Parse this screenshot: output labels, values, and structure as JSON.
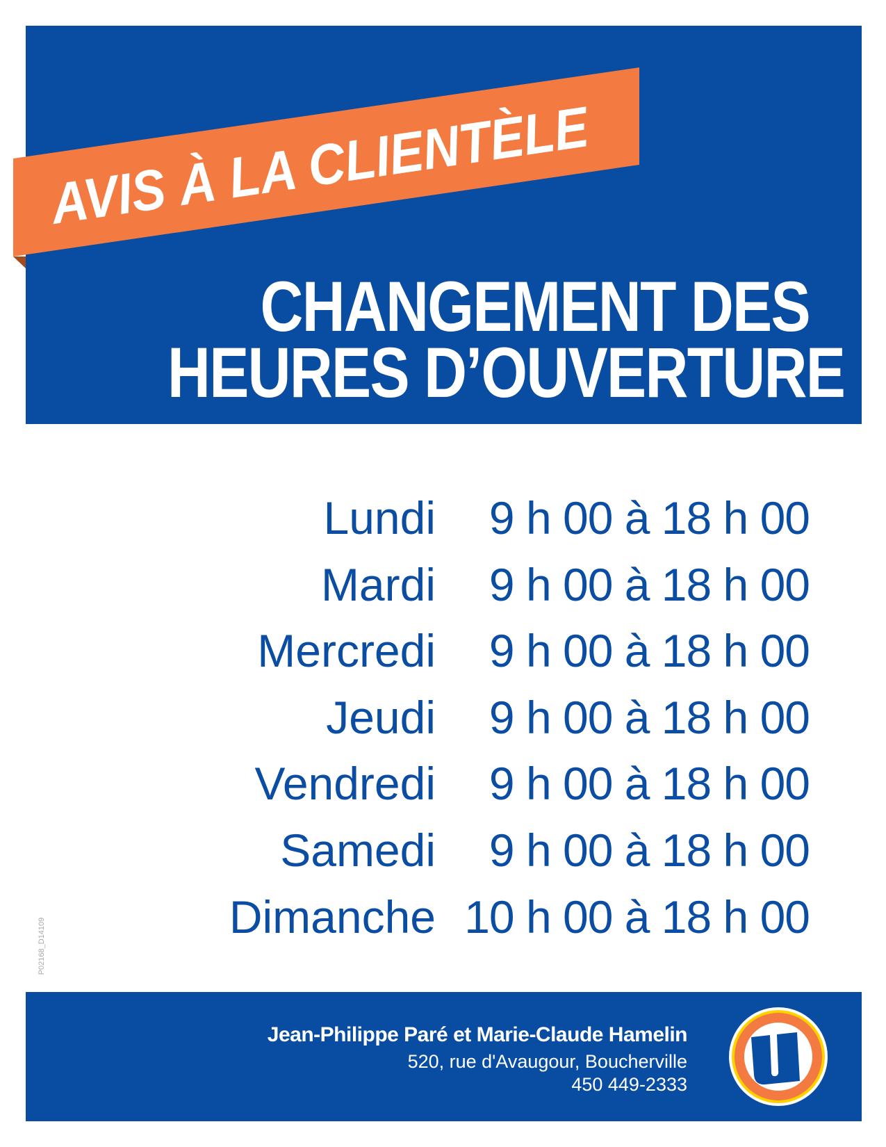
{
  "banner": {
    "ribbon_text": "AVIS À LA CLIENTÈLE"
  },
  "heading": {
    "line1": "CHANGEMENT DES",
    "line2": "HEURES D’OUVERTURE"
  },
  "schedule": [
    {
      "day": "Lundi",
      "hours": "9 h 00 à 18 h 00"
    },
    {
      "day": "Mardi",
      "hours": "9 h 00 à 18 h 00"
    },
    {
      "day": "Mercredi",
      "hours": "9 h 00 à 18 h 00"
    },
    {
      "day": "Jeudi",
      "hours": "9 h 00 à 18 h 00"
    },
    {
      "day": "Vendredi",
      "hours": "9 h 00 à 18 h 00"
    },
    {
      "day": "Samedi",
      "hours": "9 h 00 à 18 h 00"
    },
    {
      "day": "Dimanche",
      "hours": "10 h 00 à 18 h 00"
    }
  ],
  "document_code": "P02168_D14109",
  "footer": {
    "owners": "Jean-Philippe Paré et Marie-Claude Hamelin",
    "address": "520, rue d'Avaugour, Boucherville",
    "phone": "450 449-2333",
    "logo": {
      "letter": "U",
      "icon": "uniprix-u-logo"
    }
  },
  "colors": {
    "brand_blue": "#084da1",
    "ribbon_orange": "#f37a40",
    "logo_yellow": "#ffd200",
    "text_blue": "#0a4da2"
  }
}
